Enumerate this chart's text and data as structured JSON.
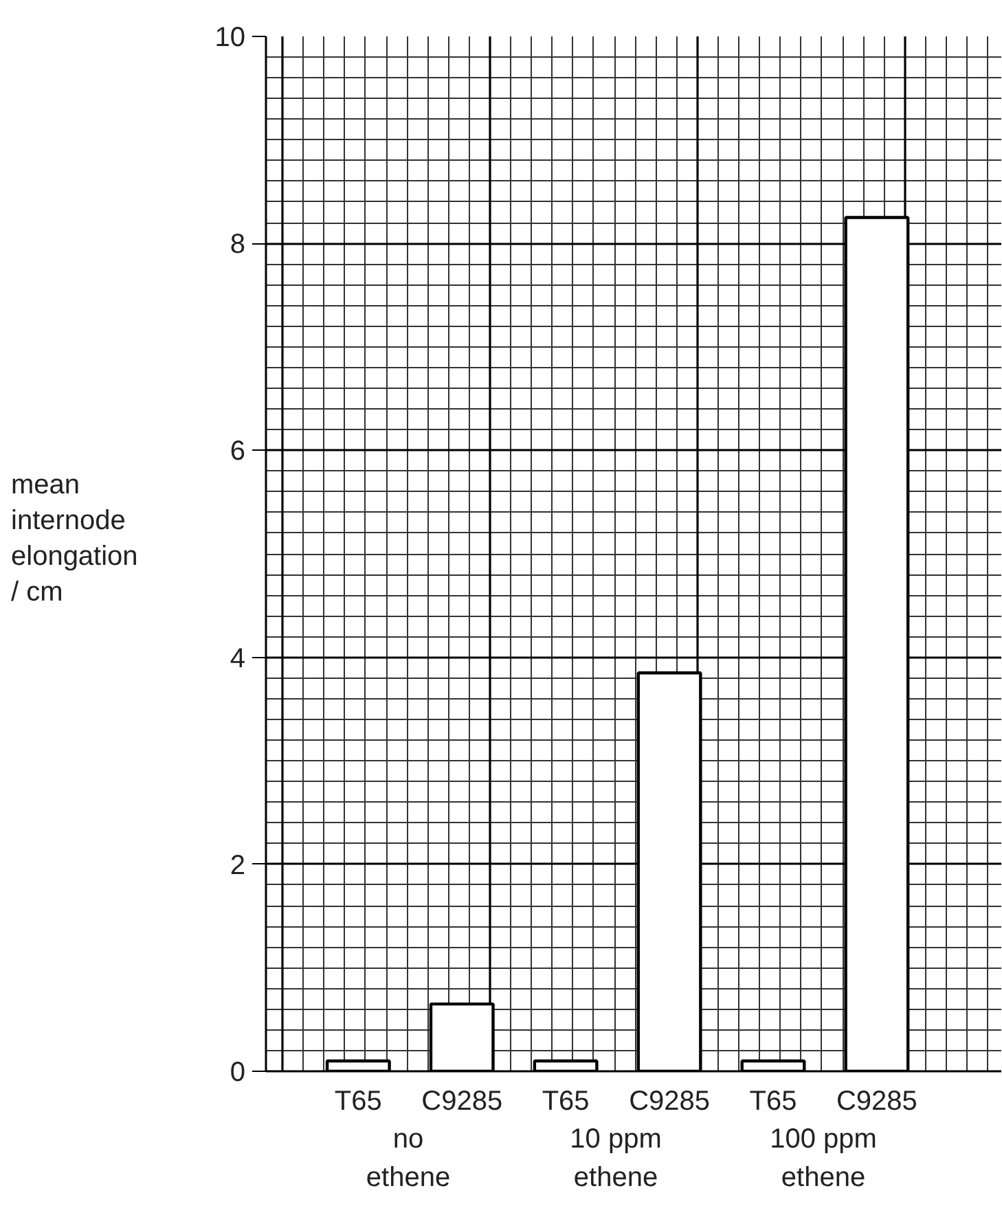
{
  "chart_data": {
    "type": "bar",
    "ylabel": "mean internode elongation / cm",
    "categories": [
      "T65",
      "C9285",
      "T65",
      "C9285",
      "T65",
      "C9285"
    ],
    "values": [
      0.1,
      0.65,
      0.1,
      3.85,
      0.1,
      8.25
    ],
    "color": "#ffffff",
    "ylim": [
      0,
      10
    ],
    "yticks": [
      0,
      2,
      4,
      6,
      8,
      10
    ],
    "grid": true,
    "annotations": [
      "no ethene",
      "10 ppm ethene",
      "100 ppm ethene"
    ]
  }
}
